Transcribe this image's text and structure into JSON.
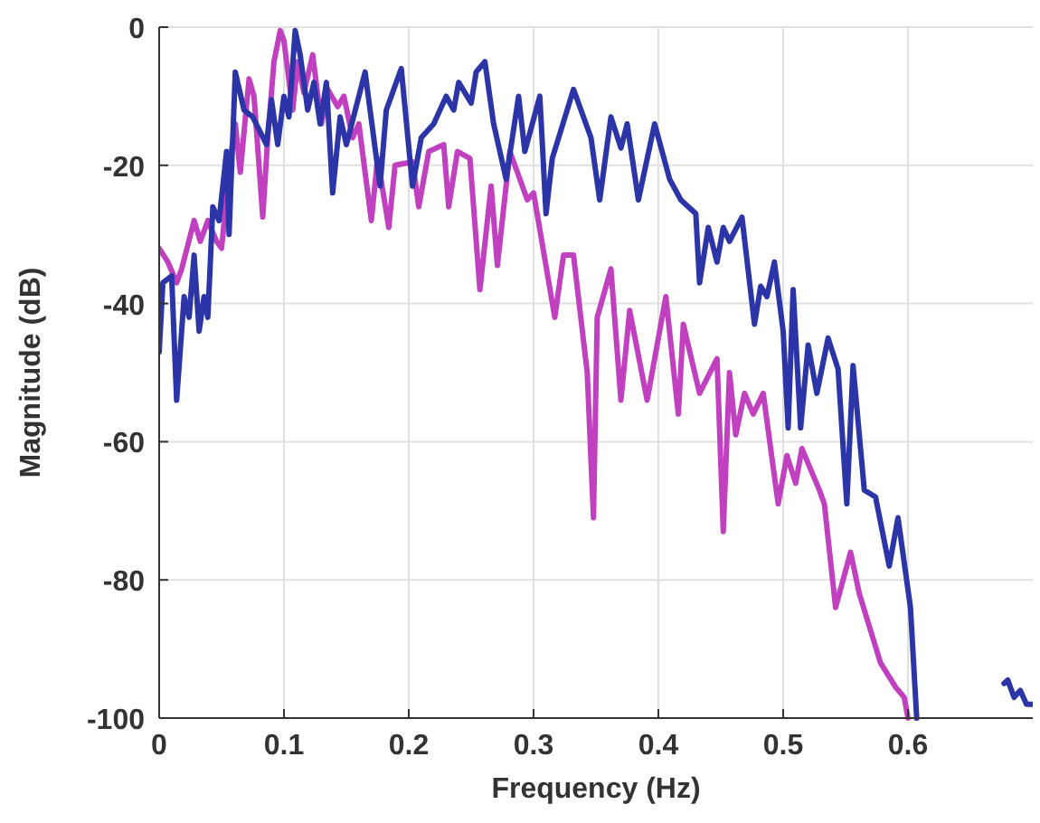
{
  "chart_data": {
    "type": "line",
    "xlabel": "Frequency (Hz)",
    "ylabel": "Magnitude (dB)",
    "xlim": [
      0,
      0.7
    ],
    "xticks": [
      0,
      0.1,
      0.2,
      0.3,
      0.4,
      0.5,
      0.6
    ],
    "ylim": [
      -100,
      0
    ],
    "yticks": [
      -100,
      -80,
      -60,
      -40,
      -20,
      0
    ],
    "grid": true,
    "line_style": "solid",
    "series": [
      {
        "color": "#c040c0",
        "x": [
          0,
          0.007,
          0.014,
          0.018,
          0.028,
          0.033,
          0.039,
          0.046,
          0.05,
          0.057,
          0.061,
          0.065,
          0.072,
          0.076,
          0.083,
          0.087,
          0.092,
          0.097,
          0.1,
          0.107,
          0.111,
          0.116,
          0.123,
          0.13,
          0.135,
          0.143,
          0.148,
          0.155,
          0.16,
          0.17,
          0.175,
          0.184,
          0.189,
          0.203,
          0.208,
          0.216,
          0.228,
          0.232,
          0.239,
          0.249,
          0.257,
          0.266,
          0.271,
          0.281,
          0.295,
          0.3,
          0.317,
          0.324,
          0.332,
          0.343,
          0.348,
          0.351,
          0.362,
          0.37,
          0.377,
          0.391,
          0.406,
          0.416,
          0.42,
          0.433,
          0.447,
          0.452,
          0.457,
          0.462,
          0.469,
          0.476,
          0.484,
          0.496,
          0.503,
          0.51,
          0.515,
          0.529,
          0.533,
          0.542,
          0.554,
          0.561,
          0.578,
          0.59,
          0.597,
          0.6
        ],
        "values": [
          -32,
          -34,
          -37,
          -35,
          -28,
          -31,
          -28,
          -31,
          -32,
          -19,
          -14,
          -21,
          -7.5,
          -10,
          -27.5,
          -16,
          -5,
          -0.5,
          -2,
          -12,
          -5,
          -9.5,
          -4,
          -14,
          -9,
          -11.5,
          -10,
          -16,
          -14,
          -28,
          -19,
          -29,
          -20,
          -19.5,
          -26,
          -18,
          -17,
          -26,
          -18,
          -19,
          -38,
          -23,
          -34.5,
          -18,
          -25,
          -24,
          -42,
          -33,
          -33,
          -50,
          -71,
          -42,
          -35,
          -54,
          -41,
          -54,
          -39,
          -56,
          -43,
          -53,
          -48,
          -73,
          -50,
          -59,
          -53,
          -56,
          -53,
          -69,
          -62,
          -66,
          -61,
          -67,
          -69,
          -84,
          -76,
          -82,
          -92,
          -95.5,
          -97,
          -100
        ]
      },
      {
        "color": "#2b35a8",
        "x": [
          0,
          0.003,
          0.01,
          0.014,
          0.02,
          0.024,
          0.028,
          0.032,
          0.036,
          0.039,
          0.043,
          0.048,
          0.054,
          0.056,
          0.061,
          0.068,
          0.075,
          0.086,
          0.09,
          0.095,
          0.1,
          0.104,
          0.109,
          0.113,
          0.119,
          0.124,
          0.129,
          0.134,
          0.139,
          0.145,
          0.15,
          0.165,
          0.177,
          0.182,
          0.194,
          0.203,
          0.21,
          0.22,
          0.23,
          0.236,
          0.24,
          0.25,
          0.254,
          0.261,
          0.268,
          0.278,
          0.288,
          0.293,
          0.305,
          0.31,
          0.315,
          0.332,
          0.346,
          0.353,
          0.362,
          0.37,
          0.375,
          0.384,
          0.397,
          0.409,
          0.418,
          0.43,
          0.433,
          0.44,
          0.447,
          0.452,
          0.457,
          0.467,
          0.477,
          0.482,
          0.487,
          0.493,
          0.5,
          0.504,
          0.508,
          0.514,
          0.52,
          0.527,
          0.536,
          0.544,
          0.551,
          0.556,
          0.565,
          0.574,
          0.585,
          0.592,
          0.602,
          0.607
        ],
        "values": [
          -47,
          -37,
          -36,
          -54,
          -39,
          -42,
          -33,
          -44,
          -39,
          -42,
          -26,
          -28,
          -18,
          -30,
          -6.5,
          -12,
          -13,
          -17,
          -10.5,
          -17,
          -10,
          -13,
          -0.5,
          -4,
          -12,
          -8,
          -14,
          -8,
          -24,
          -13,
          -17,
          -6.5,
          -23,
          -12,
          -6,
          -23,
          -16,
          -14,
          -10,
          -12,
          -8,
          -11,
          -6.5,
          -5,
          -14,
          -22,
          -10,
          -18,
          -10,
          -27,
          -19,
          -9,
          -16,
          -25,
          -13,
          -17.5,
          -14,
          -25,
          -14,
          -22,
          -25,
          -27,
          -37,
          -29,
          -34,
          -29,
          -31,
          -27.5,
          -43,
          -37.5,
          -39,
          -34,
          -44,
          -58,
          -38,
          -58,
          -46,
          -53,
          -45,
          -49.5,
          -69,
          -49,
          -67,
          -68,
          -78,
          -71,
          -84,
          -100
        ]
      },
      {
        "color": "#2b35a8",
        "x": [
          0.677,
          0.68,
          0.685,
          0.69,
          0.695,
          0.7
        ],
        "values": [
          -95,
          -94.5,
          -97,
          -96,
          -98,
          -98
        ]
      }
    ]
  }
}
